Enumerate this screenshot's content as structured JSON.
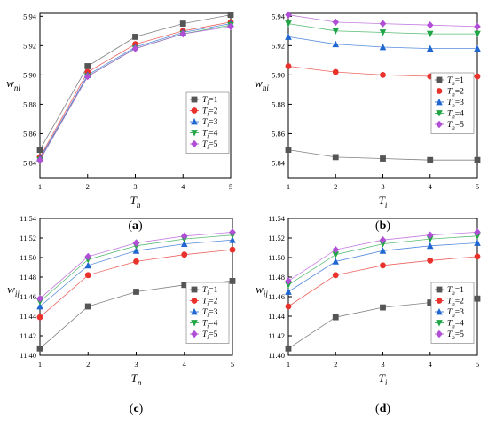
{
  "chart_data": [
    {
      "type": "line",
      "panel_label": "(a)",
      "xlabel_main": "T",
      "xlabel_sub": "n",
      "ylabel_main": "w",
      "ylabel_sub": "ni",
      "x": [
        1,
        2,
        3,
        4,
        5
      ],
      "xlim": [
        1,
        5
      ],
      "ylim": [
        5.83,
        5.942
      ],
      "yticks": [
        5.84,
        5.86,
        5.88,
        5.9,
        5.92,
        5.94
      ],
      "ytick_labels": [
        "5.84",
        "5.86",
        "5.88",
        "5.90",
        "5.92",
        "5.94"
      ],
      "xtick_labels": [
        "1",
        "2",
        "3",
        "4",
        "5"
      ],
      "legend": {
        "position": "center-right"
      },
      "series": [
        {
          "name_main": "T",
          "name_sub": "i",
          "name_value": "=1",
          "color": "#555555",
          "marker": "square",
          "values": [
            5.849,
            5.906,
            5.926,
            5.935,
            5.941
          ]
        },
        {
          "name_main": "T",
          "name_sub": "i",
          "name_value": "=2",
          "color": "#e8322b",
          "marker": "circle",
          "values": [
            5.844,
            5.902,
            5.921,
            5.93,
            5.936
          ]
        },
        {
          "name_main": "T",
          "name_sub": "i",
          "name_value": "=3",
          "color": "#1f66d1",
          "marker": "triangle-up",
          "values": [
            5.843,
            5.9,
            5.919,
            5.929,
            5.935
          ]
        },
        {
          "name_main": "T",
          "name_sub": "i",
          "name_value": "=4",
          "color": "#1fa545",
          "marker": "triangle-down",
          "values": [
            5.842,
            5.899,
            5.918,
            5.928,
            5.934
          ]
        },
        {
          "name_main": "T",
          "name_sub": "i",
          "name_value": "=5",
          "color": "#b04fd6",
          "marker": "diamond",
          "values": [
            5.842,
            5.899,
            5.918,
            5.928,
            5.933
          ]
        }
      ]
    },
    {
      "type": "line",
      "panel_label": "(b)",
      "xlabel_main": "T",
      "xlabel_sub": "i",
      "ylabel_main": "w",
      "ylabel_sub": "ni",
      "x": [
        1,
        2,
        3,
        4,
        5
      ],
      "xlim": [
        1,
        5
      ],
      "ylim": [
        5.83,
        5.942
      ],
      "yticks": [
        5.84,
        5.86,
        5.88,
        5.9,
        5.92,
        5.94
      ],
      "ytick_labels": [
        "5.84",
        "5.86",
        "5.88",
        "5.90",
        "5.92",
        "5.94"
      ],
      "xtick_labels": [
        "1",
        "2",
        "3",
        "4",
        "5"
      ],
      "legend": {
        "position": "bottom-right"
      },
      "series": [
        {
          "name_main": "T",
          "name_sub": "n",
          "name_value": "=1",
          "color": "#555555",
          "marker": "square",
          "values": [
            5.849,
            5.844,
            5.843,
            5.842,
            5.842
          ]
        },
        {
          "name_main": "T",
          "name_sub": "n",
          "name_value": "=2",
          "color": "#e8322b",
          "marker": "circle",
          "values": [
            5.906,
            5.902,
            5.9,
            5.899,
            5.899
          ]
        },
        {
          "name_main": "T",
          "name_sub": "n",
          "name_value": "=3",
          "color": "#1f66d1",
          "marker": "triangle-up",
          "values": [
            5.926,
            5.921,
            5.919,
            5.918,
            5.918
          ]
        },
        {
          "name_main": "T",
          "name_sub": "n",
          "name_value": "=4",
          "color": "#1fa545",
          "marker": "triangle-down",
          "values": [
            5.935,
            5.93,
            5.929,
            5.928,
            5.928
          ]
        },
        {
          "name_main": "T",
          "name_sub": "n",
          "name_value": "=5",
          "color": "#b04fd6",
          "marker": "diamond",
          "values": [
            5.941,
            5.936,
            5.935,
            5.934,
            5.933
          ]
        }
      ]
    },
    {
      "type": "line",
      "panel_label": "(c)",
      "xlabel_main": "T",
      "xlabel_sub": "n",
      "ylabel_main": "w",
      "ylabel_sub": "ij",
      "x": [
        1,
        2,
        3,
        4,
        5
      ],
      "xlim": [
        1,
        5
      ],
      "ylim": [
        11.4,
        11.54
      ],
      "yticks": [
        11.4,
        11.42,
        11.44,
        11.46,
        11.48,
        11.5,
        11.52,
        11.54
      ],
      "ytick_labels": [
        "11.40",
        "11.42",
        "11.44",
        "11.46",
        "11.48",
        "11.50",
        "11.52",
        "11.54"
      ],
      "xtick_labels": [
        "1",
        "2",
        "3",
        "4",
        "5"
      ],
      "legend": {
        "position": "bottom-right"
      },
      "series": [
        {
          "name_main": "T",
          "name_sub": "i",
          "name_value": "=1",
          "color": "#555555",
          "marker": "square",
          "values": [
            11.407,
            11.45,
            11.465,
            11.472,
            11.476
          ]
        },
        {
          "name_main": "T",
          "name_sub": "i",
          "name_value": "=2",
          "color": "#e8322b",
          "marker": "circle",
          "values": [
            11.439,
            11.482,
            11.496,
            11.503,
            11.508
          ]
        },
        {
          "name_main": "T",
          "name_sub": "i",
          "name_value": "=3",
          "color": "#1f66d1",
          "marker": "triangle-up",
          "values": [
            11.45,
            11.492,
            11.507,
            11.514,
            11.518
          ]
        },
        {
          "name_main": "T",
          "name_sub": "i",
          "name_value": "=4",
          "color": "#1fa545",
          "marker": "triangle-down",
          "values": [
            11.455,
            11.498,
            11.512,
            11.519,
            11.523
          ]
        },
        {
          "name_main": "T",
          "name_sub": "i",
          "name_value": "=5",
          "color": "#b04fd6",
          "marker": "diamond",
          "values": [
            11.458,
            11.501,
            11.515,
            11.522,
            11.526
          ]
        }
      ]
    },
    {
      "type": "line",
      "panel_label": "(d)",
      "xlabel_main": "T",
      "xlabel_sub": "i",
      "ylabel_main": "w",
      "ylabel_sub": "ij",
      "x": [
        1,
        2,
        3,
        4,
        5
      ],
      "xlim": [
        1,
        5
      ],
      "ylim": [
        11.4,
        11.54
      ],
      "yticks": [
        11.4,
        11.42,
        11.44,
        11.46,
        11.48,
        11.5,
        11.52,
        11.54
      ],
      "ytick_labels": [
        "11.40",
        "11.42",
        "11.44",
        "11.46",
        "11.48",
        "11.50",
        "11.52",
        "11.54"
      ],
      "xtick_labels": [
        "1",
        "2",
        "3",
        "4",
        "5"
      ],
      "legend": {
        "position": "bottom-right"
      },
      "series": [
        {
          "name_main": "T",
          "name_sub": "n",
          "name_value": "=1",
          "color": "#555555",
          "marker": "square",
          "values": [
            11.407,
            11.439,
            11.449,
            11.454,
            11.458
          ]
        },
        {
          "name_main": "T",
          "name_sub": "n",
          "name_value": "=2",
          "color": "#e8322b",
          "marker": "circle",
          "values": [
            11.45,
            11.482,
            11.492,
            11.497,
            11.501
          ]
        },
        {
          "name_main": "T",
          "name_sub": "n",
          "name_value": "=3",
          "color": "#1f66d1",
          "marker": "triangle-up",
          "values": [
            11.465,
            11.496,
            11.507,
            11.512,
            11.515
          ]
        },
        {
          "name_main": "T",
          "name_sub": "n",
          "name_value": "=4",
          "color": "#1fa545",
          "marker": "triangle-down",
          "values": [
            11.472,
            11.503,
            11.514,
            11.519,
            11.522
          ]
        },
        {
          "name_main": "T",
          "name_sub": "n",
          "name_value": "=5",
          "color": "#b04fd6",
          "marker": "diamond",
          "values": [
            11.476,
            11.508,
            11.518,
            11.523,
            11.526
          ]
        }
      ]
    }
  ]
}
